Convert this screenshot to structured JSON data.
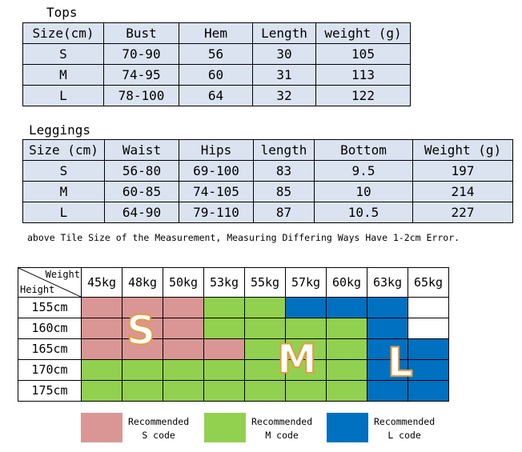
{
  "tops": {
    "title": "Tops",
    "headers": [
      "Size(cm)",
      "Bust",
      "Hem",
      "Length",
      "weight (g)"
    ],
    "rows": [
      [
        "S",
        "70-90",
        "56",
        "30",
        "105"
      ],
      [
        "M",
        "74-95",
        "60",
        "31",
        "113"
      ],
      [
        "L",
        "78-100",
        "64",
        "32",
        "122"
      ]
    ]
  },
  "leggings": {
    "title": "Leggings",
    "headers": [
      "Size (cm)",
      "Waist",
      "Hips",
      "length",
      "Bottom",
      "Weight (g)"
    ],
    "rows": [
      [
        "S",
        "56-80",
        "69-100",
        "83",
        "9.5",
        "197"
      ],
      [
        "M",
        "60-85",
        "74-105",
        "85",
        "10",
        "214"
      ],
      [
        "L",
        "64-90",
        "79-110",
        "87",
        "10.5",
        "227"
      ]
    ]
  },
  "note": "above Tile Size of the Measurement, Measuring Differing Ways Have 1-2cm Error.",
  "grid": {
    "corner_weight": "Weight",
    "corner_height": "Height",
    "weights": [
      "45kg",
      "48kg",
      "50kg",
      "53kg",
      "55kg",
      "57kg",
      "60kg",
      "63kg",
      "65kg"
    ],
    "rows": [
      {
        "height": "155cm",
        "cells": [
          "S",
          "S",
          "S",
          "M",
          "M",
          "L",
          "L",
          "L",
          "none"
        ]
      },
      {
        "height": "160cm",
        "cells": [
          "S",
          "S",
          "S",
          "M",
          "M",
          "M",
          "M",
          "L",
          "none"
        ]
      },
      {
        "height": "165cm",
        "cells": [
          "S",
          "S",
          "S",
          "S",
          "M",
          "M",
          "M",
          "L",
          "L"
        ]
      },
      {
        "height": "170cm",
        "cells": [
          "M",
          "M",
          "M",
          "M",
          "M",
          "M",
          "M",
          "L",
          "L"
        ]
      },
      {
        "height": "175cm",
        "cells": [
          "M",
          "M",
          "M",
          "M",
          "M",
          "M",
          "M",
          "L",
          "L"
        ]
      }
    ],
    "big_labels": {
      "s": "S",
      "m": "M",
      "l": "L"
    },
    "colors": {
      "S": "#da9694",
      "M": "#92d050",
      "L": "#0070c0",
      "none": "#ffffff"
    }
  },
  "legend": [
    {
      "line1": "Recommended",
      "line2": "S code",
      "color": "#da9694"
    },
    {
      "line1": "Recommended",
      "line2": "M code",
      "color": "#92d050"
    },
    {
      "line1": "Recommended",
      "line2": "L code",
      "color": "#0070c0"
    }
  ]
}
